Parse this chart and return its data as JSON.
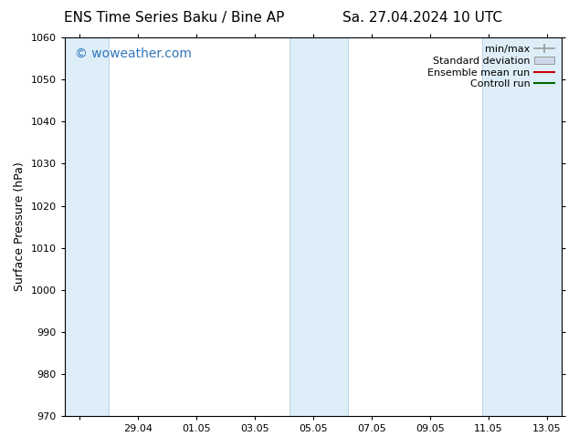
{
  "title_left": "ENS Time Series Baku / Bine AP",
  "title_right": "Sa. 27.04.2024 10 UTC",
  "ylabel": "Surface Pressure (hPa)",
  "ylim": [
    970,
    1060
  ],
  "yticks": [
    970,
    980,
    990,
    1000,
    1010,
    1020,
    1030,
    1040,
    1050,
    1060
  ],
  "xlim": [
    -0.5,
    16.5
  ],
  "x_tick_labels": [
    "",
    "29.04",
    "01.05",
    "03.05",
    "05.05",
    "07.05",
    "09.05",
    "11.05",
    "13.05"
  ],
  "x_tick_positions": [
    0,
    2,
    4,
    6,
    8,
    10,
    12,
    14,
    16
  ],
  "shaded_bands": [
    {
      "x_start": -0.5,
      "x_end": 1.0
    },
    {
      "x_start": 7.2,
      "x_end": 9.2
    },
    {
      "x_start": 13.8,
      "x_end": 16.5
    }
  ],
  "shaded_color": "#ddeef8",
  "shaded_edge_color": "#b8cfe0",
  "background_color": "#ffffff",
  "watermark_text": "© woweather.com",
  "watermark_color": "#3377bb",
  "watermark_fontsize": 10,
  "legend_items": [
    {
      "label": "min/max",
      "color": "#aaaaaa",
      "style": "errorbar"
    },
    {
      "label": "Standard deviation",
      "color": "#cddaec",
      "style": "box"
    },
    {
      "label": "Ensemble mean run",
      "color": "#cc0000",
      "style": "line"
    },
    {
      "label": "Controll run",
      "color": "#006600",
      "style": "line"
    }
  ],
  "title_fontsize": 11,
  "axis_label_fontsize": 9,
  "tick_fontsize": 8,
  "legend_fontsize": 8
}
